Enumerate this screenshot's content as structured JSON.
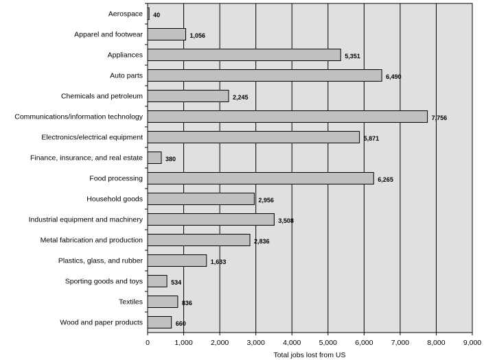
{
  "chart_data": {
    "type": "bar",
    "orientation": "horizontal",
    "title": "",
    "xlabel": "Total jobs lost from US",
    "ylabel": "",
    "xlim": [
      0,
      9000
    ],
    "xticks": [
      0,
      1000,
      2000,
      3000,
      4000,
      5000,
      6000,
      7000,
      8000,
      9000
    ],
    "xtick_labels": [
      "0",
      "1,000",
      "2,000",
      "3,000",
      "4,000",
      "5,000",
      "6,000",
      "7,000",
      "8,000",
      "9,000"
    ],
    "grid": "vertical",
    "plot_background": "#e0e0e0",
    "bar_color": "#c0c0c0",
    "categories": [
      "Aerospace",
      "Apparel and footwear",
      "Appliances",
      "Auto parts",
      "Chemicals and petroleum",
      "Communications/information technology",
      "Electronics/electrical equipment",
      "Finance, insurance, and real estate",
      "Food processing",
      "Household goods",
      "Industrial equipment and machinery",
      "Metal fabrication and production",
      "Plastics, glass, and rubber",
      "Sporting goods and toys",
      "Textiles",
      "Wood and paper products"
    ],
    "values": [
      40,
      1056,
      5351,
      6490,
      2245,
      7756,
      5871,
      380,
      6265,
      2956,
      3508,
      2836,
      1633,
      534,
      836,
      660
    ],
    "value_labels": [
      "40",
      "1,056",
      "5,351",
      "6,490",
      "2,245",
      "7,756",
      "5,871",
      "380",
      "6,265",
      "2,956",
      "3,508",
      "2,836",
      "1,633",
      "534",
      "836",
      "660"
    ]
  }
}
